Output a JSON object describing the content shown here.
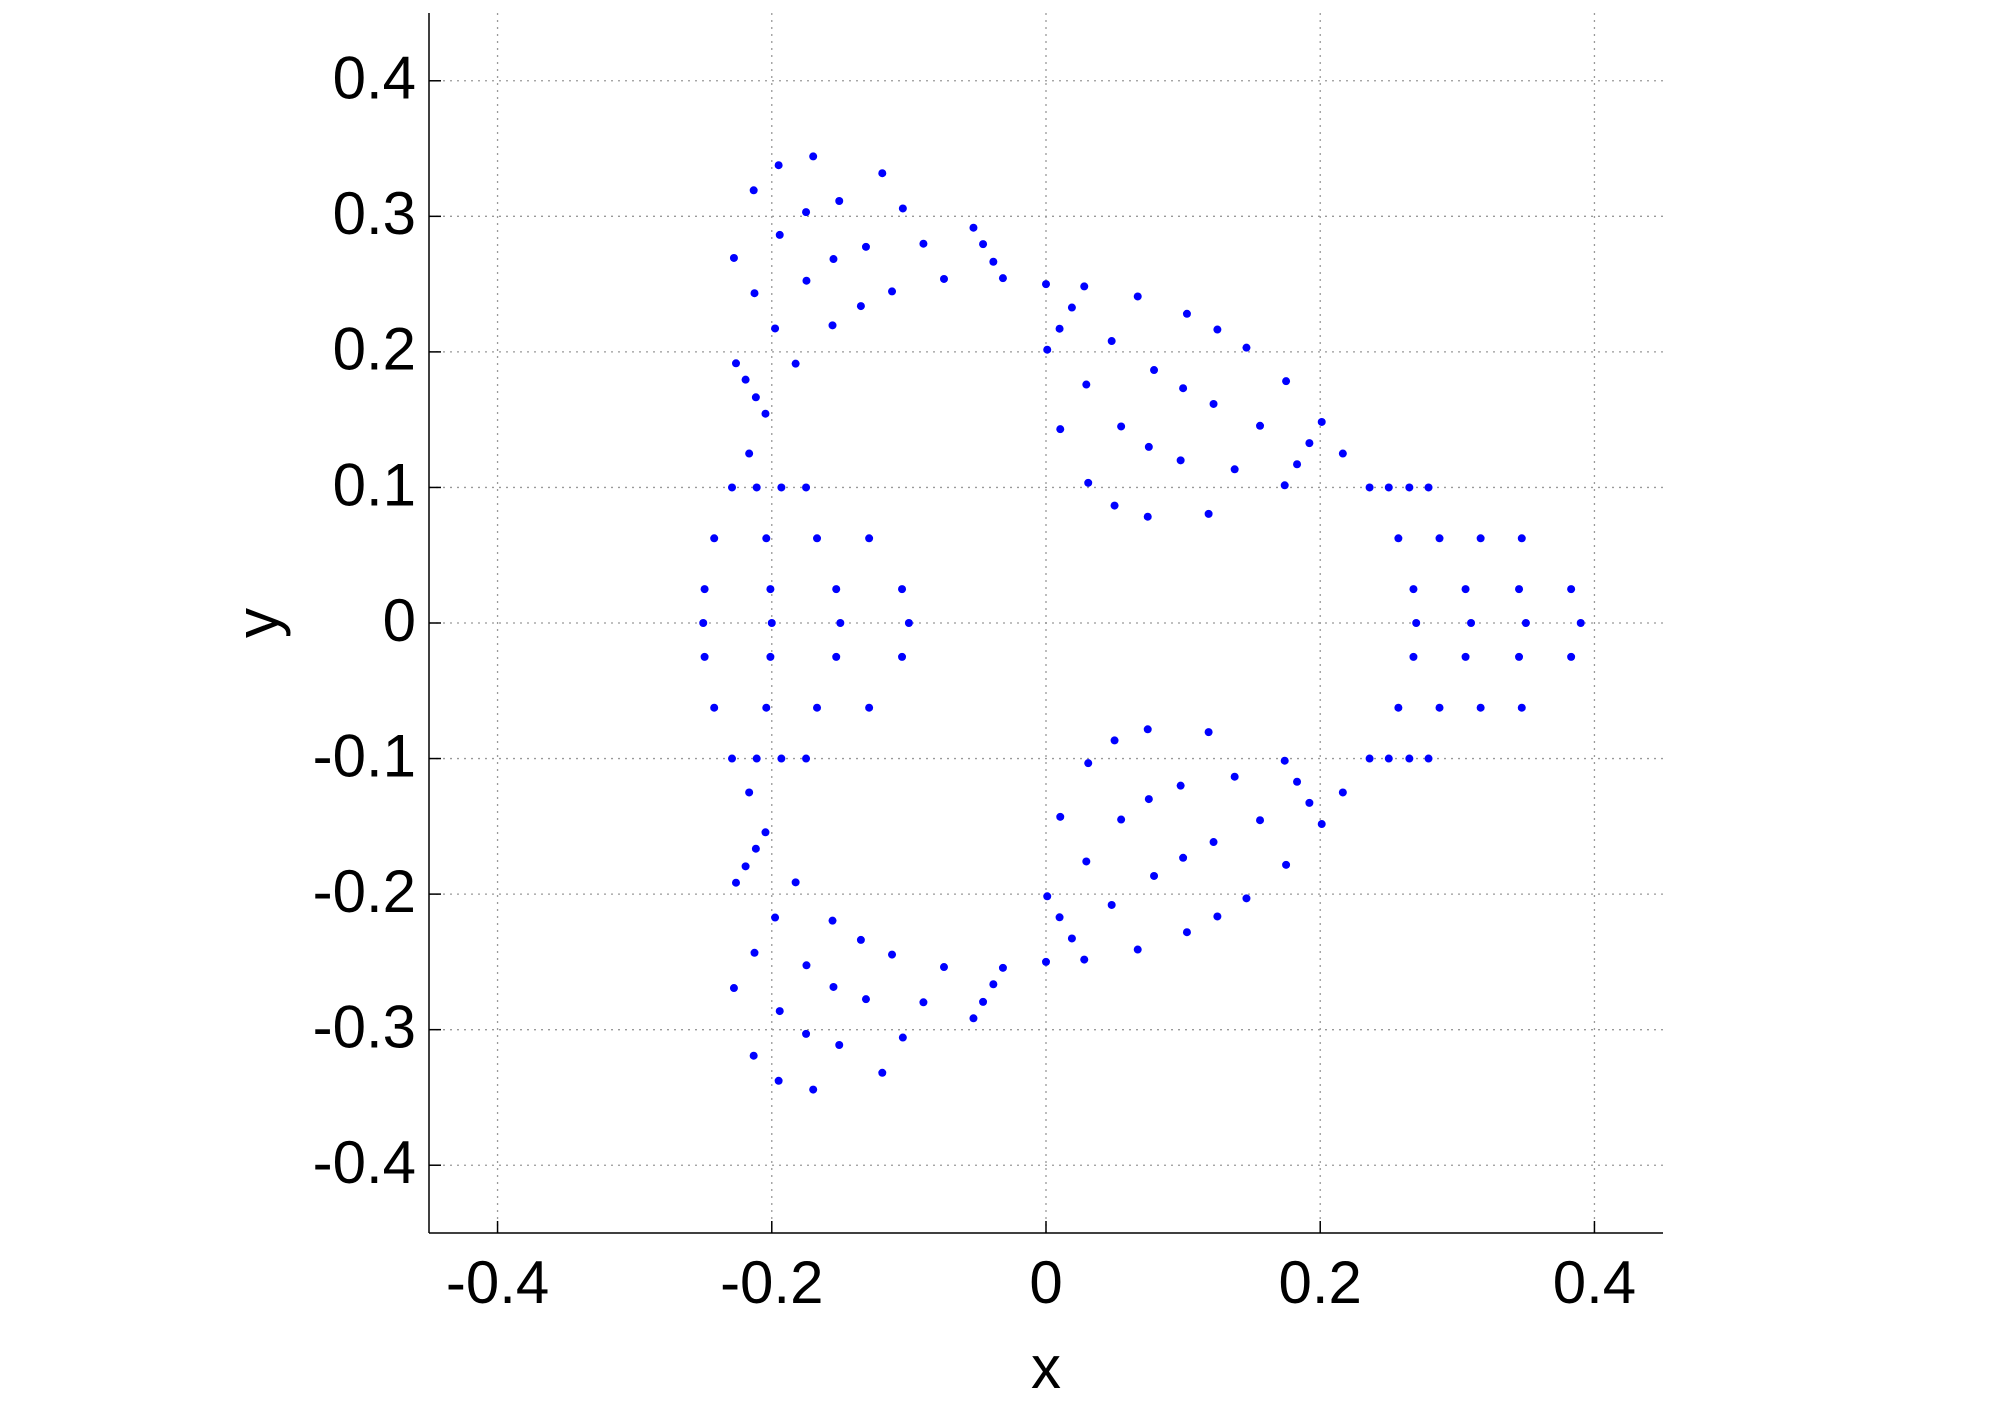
{
  "chart_data": {
    "type": "scatter",
    "xlabel": "x",
    "ylabel": "y",
    "xlim": [
      -0.45,
      0.45
    ],
    "ylim": [
      -0.45,
      0.45
    ],
    "xticks": [
      -0.4,
      -0.2,
      0,
      0.2,
      0.4
    ],
    "yticks": [
      -0.4,
      -0.3,
      -0.2,
      -0.1,
      0,
      0.1,
      0.2,
      0.3,
      0.4
    ],
    "grid": true,
    "color": "#0000ff",
    "x": [
      0.236,
      0.257,
      0.268,
      0.27,
      0.268,
      0.257,
      0.236,
      0.25,
      0.287,
      0.306,
      0.31,
      0.306,
      0.287,
      0.25,
      0.265,
      0.317,
      0.345,
      0.35,
      0.345,
      0.317,
      0.265,
      0.279,
      0.347,
      0.383,
      0.39,
      0.383,
      0.347,
      0.279,
      -0.2046,
      -0.1826,
      -0.1557,
      -0.135,
      -0.1123,
      -0.0744,
      -0.0314,
      -0.2116,
      -0.1976,
      -0.1747,
      -0.155,
      -0.1313,
      -0.0894,
      -0.0384,
      -0.2191,
      -0.2126,
      -0.1942,
      -0.175,
      -0.1508,
      -0.1044,
      -0.0459,
      -0.2261,
      -0.2276,
      -0.2132,
      -0.195,
      -0.1698,
      -0.1194,
      -0.0529,
      -0.0314,
      -0.0744,
      -0.1123,
      -0.135,
      -0.1557,
      -0.1826,
      -0.2046,
      -0.0384,
      -0.0894,
      -0.1313,
      -0.155,
      -0.1747,
      -0.1976,
      -0.2116,
      -0.0459,
      -0.1044,
      -0.1508,
      -0.175,
      -0.1942,
      -0.2126,
      -0.2191,
      -0.0529,
      -0.1194,
      -0.1698,
      -0.195,
      -0.2132,
      -0.2276,
      -0.2261,
      -0.229,
      -0.242,
      -0.249,
      -0.25,
      -0.249,
      -0.242,
      -0.229,
      -0.211,
      -0.204,
      -0.201,
      -0.2,
      -0.201,
      -0.204,
      -0.211,
      -0.193,
      -0.167,
      -0.153,
      -0.15,
      -0.153,
      -0.167,
      -0.193,
      -0.175,
      -0.129,
      -0.105,
      -0.1,
      -0.105,
      -0.129,
      -0.175,
      0.0279,
      0.0669,
      0.1028,
      0.125,
      0.1462,
      0.1751,
      0.2011,
      0.0189,
      0.0479,
      0.0788,
      0.1,
      0.1222,
      0.1561,
      0.1921,
      0.0099,
      0.0294,
      0.0548,
      0.075,
      0.0982,
      0.1376,
      0.1831,
      0.0009,
      0.0104,
      0.0308,
      0.05,
      0.0742,
      0.1186,
      0.1741,
      0.2011,
      0.1751,
      0.1462,
      0.125,
      0.1028,
      0.0669,
      0.0279,
      0.1921,
      0.1561,
      0.1222,
      0.1,
      0.0788,
      0.0479,
      0.0189,
      0.1831,
      0.1376,
      0.0982,
      0.075,
      0.0548,
      0.0294,
      0.0099,
      0.1741,
      0.1186,
      0.0742,
      0.05,
      0.0308,
      0.0104,
      0.0009,
      0,
      0.2165,
      0.2165,
      0,
      -0.2165,
      -0.2165
    ],
    "values": [
      0.1,
      0.0625,
      0.025,
      0,
      -0.025,
      -0.0625,
      -0.1,
      0.1,
      0.0625,
      0.025,
      0,
      -0.025,
      -0.0625,
      -0.1,
      0.1,
      0.0625,
      0.025,
      0,
      -0.025,
      -0.0625,
      -0.1,
      0.1,
      0.0625,
      0.025,
      0,
      -0.025,
      -0.0625,
      -0.1,
      0.1544,
      0.1913,
      0.2196,
      0.2338,
      0.2446,
      0.2538,
      0.2544,
      0.1665,
      0.2173,
      0.2525,
      0.2685,
      0.2775,
      0.2798,
      0.2665,
      0.1795,
      0.2433,
      0.2863,
      0.3031,
      0.3113,
      0.3058,
      0.2795,
      0.1916,
      0.2693,
      0.3192,
      0.3377,
      0.3442,
      0.3318,
      0.2916,
      -0.2544,
      -0.2538,
      -0.2446,
      -0.2338,
      -0.2196,
      -0.1913,
      -0.1544,
      -0.2665,
      -0.2798,
      -0.2775,
      -0.2685,
      -0.2525,
      -0.2173,
      -0.1665,
      -0.2795,
      -0.3058,
      -0.3113,
      -0.3031,
      -0.2863,
      -0.2433,
      -0.1795,
      -0.2916,
      -0.3318,
      -0.3442,
      -0.3377,
      -0.3192,
      -0.2693,
      -0.1916,
      0.1,
      0.0625,
      0.025,
      0,
      -0.025,
      -0.0625,
      -0.1,
      0.1,
      0.0625,
      0.025,
      0,
      -0.025,
      -0.0625,
      -0.1,
      0.1,
      0.0625,
      0.025,
      0,
      -0.025,
      -0.0625,
      -0.1,
      0.1,
      0.0625,
      0.025,
      0,
      -0.025,
      -0.0625,
      -0.1,
      -0.2483,
      -0.2409,
      -0.2281,
      -0.2165,
      -0.2031,
      -0.1784,
      -0.1483,
      -0.2327,
      -0.208,
      -0.1866,
      -0.1732,
      -0.1616,
      -0.1455,
      -0.1327,
      -0.2171,
      -0.1759,
      -0.145,
      -0.1299,
      -0.12,
      -0.1134,
      -0.1171,
      -0.2016,
      -0.143,
      -0.1034,
      -0.0866,
      -0.0784,
      -0.0805,
      -0.1016,
      0.1483,
      0.1784,
      0.2031,
      0.2165,
      0.2281,
      0.2409,
      0.2483,
      0.1327,
      0.1455,
      0.1616,
      0.1732,
      0.1866,
      0.208,
      0.2327,
      0.1171,
      0.1134,
      0.12,
      0.1299,
      0.145,
      0.1759,
      0.2171,
      0.1016,
      0.0805,
      0.0784,
      0.0866,
      0.1034,
      0.143,
      0.2016,
      0.25,
      0.125,
      -0.125,
      -0.25,
      -0.125,
      0.125
    ]
  }
}
